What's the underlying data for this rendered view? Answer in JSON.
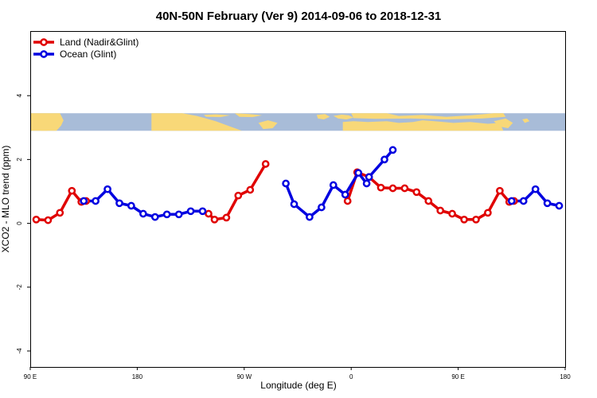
{
  "chart_data": {
    "type": "line",
    "title": "40N-50N February (Ver 9)   2014-09-06 to 2018-12-31",
    "xlabel": "Longitude (deg E)",
    "ylabel": "XCO2 - MLO trend (ppm)",
    "xlim": [
      90,
      540
    ],
    "ylim": [
      -4.5,
      6
    ],
    "x_ticks": [
      {
        "value": 90,
        "label": "90 E"
      },
      {
        "value": 180,
        "label": "180"
      },
      {
        "value": 270,
        "label": "90 W"
      },
      {
        "value": 360,
        "label": "0"
      },
      {
        "value": 450,
        "label": "90 E"
      },
      {
        "value": 540,
        "label": "180"
      }
    ],
    "y_ticks": [
      {
        "value": -4,
        "label": "-4"
      },
      {
        "value": -2,
        "label": "-2"
      },
      {
        "value": 0,
        "label": "0"
      },
      {
        "value": 2,
        "label": "2"
      },
      {
        "value": 4,
        "label": "4"
      }
    ],
    "grid": false,
    "legend_position": "top-left",
    "map_strip": {
      "ymin": 2.9,
      "ymax": 3.45,
      "land_color": "#f8d878",
      "ocean_color": "#a8bcd8"
    },
    "series": [
      {
        "name": "Land (Nadir&Glint)",
        "color": "#e00000",
        "segments": [
          [
            [
              95,
              0.12
            ],
            [
              105,
              0.1
            ],
            [
              115,
              0.33
            ],
            [
              125,
              1.02
            ],
            [
              133,
              0.67
            ],
            [
              137,
              0.7
            ]
          ],
          [
            [
              240,
              0.3
            ],
            [
              245,
              0.12
            ],
            [
              255,
              0.18
            ],
            [
              265,
              0.87
            ],
            [
              275,
              1.05
            ],
            [
              288,
              1.86
            ]
          ],
          [
            [
              357,
              0.7
            ],
            [
              365,
              1.6
            ],
            [
              375,
              1.45
            ],
            [
              385,
              1.12
            ],
            [
              395,
              1.1
            ],
            [
              405,
              1.1
            ],
            [
              415,
              0.98
            ],
            [
              425,
              0.7
            ],
            [
              435,
              0.4
            ],
            [
              445,
              0.3
            ],
            [
              455,
              0.12
            ],
            [
              465,
              0.12
            ],
            [
              475,
              0.33
            ],
            [
              485,
              1.02
            ],
            [
              493,
              0.67
            ],
            [
              497,
              0.7
            ]
          ]
        ]
      },
      {
        "name": "Ocean (Glint)",
        "color": "#0000e0",
        "segments": [
          [
            [
              135,
              0.7
            ],
            [
              145,
              0.7
            ],
            [
              155,
              1.07
            ],
            [
              165,
              0.63
            ],
            [
              175,
              0.55
            ],
            [
              185,
              0.3
            ],
            [
              195,
              0.2
            ],
            [
              205,
              0.28
            ],
            [
              215,
              0.28
            ],
            [
              225,
              0.38
            ],
            [
              235,
              0.38
            ]
          ],
          [
            [
              305,
              1.25
            ],
            [
              312,
              0.6
            ],
            [
              325,
              0.2
            ],
            [
              335,
              0.5
            ],
            [
              345,
              1.2
            ],
            [
              355,
              0.9
            ],
            [
              366,
              1.58
            ],
            [
              373,
              1.25
            ]
          ],
          [
            [
              375,
              1.45
            ],
            [
              388,
              2.0
            ],
            [
              395,
              2.3
            ]
          ],
          [
            [
              495,
              0.7
            ],
            [
              505,
              0.7
            ],
            [
              515,
              1.07
            ],
            [
              525,
              0.63
            ],
            [
              535,
              0.55
            ]
          ]
        ]
      }
    ]
  }
}
